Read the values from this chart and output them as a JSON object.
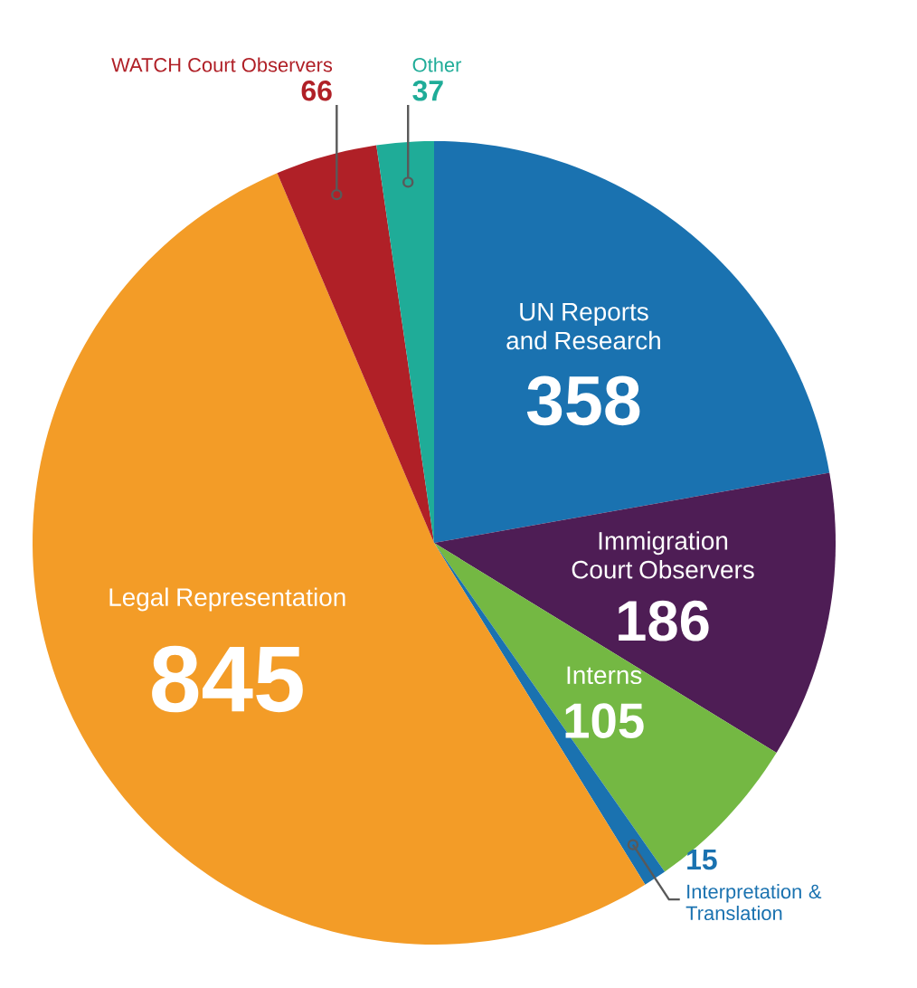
{
  "chart_data": {
    "type": "pie",
    "categories": [
      "UN Reports and Research",
      "Immigration Court Observers",
      "Interns",
      "Interpretation & Translation",
      "Legal Representation",
      "WATCH Court Observers",
      "Other"
    ],
    "values": [
      358,
      186,
      105,
      15,
      845,
      66,
      37
    ],
    "colors": [
      "#1a72b0",
      "#4e1d55",
      "#74b843",
      "#1a72b0",
      "#f39c27",
      "#b02027",
      "#1fac98"
    ],
    "data_labels": true
  }
}
